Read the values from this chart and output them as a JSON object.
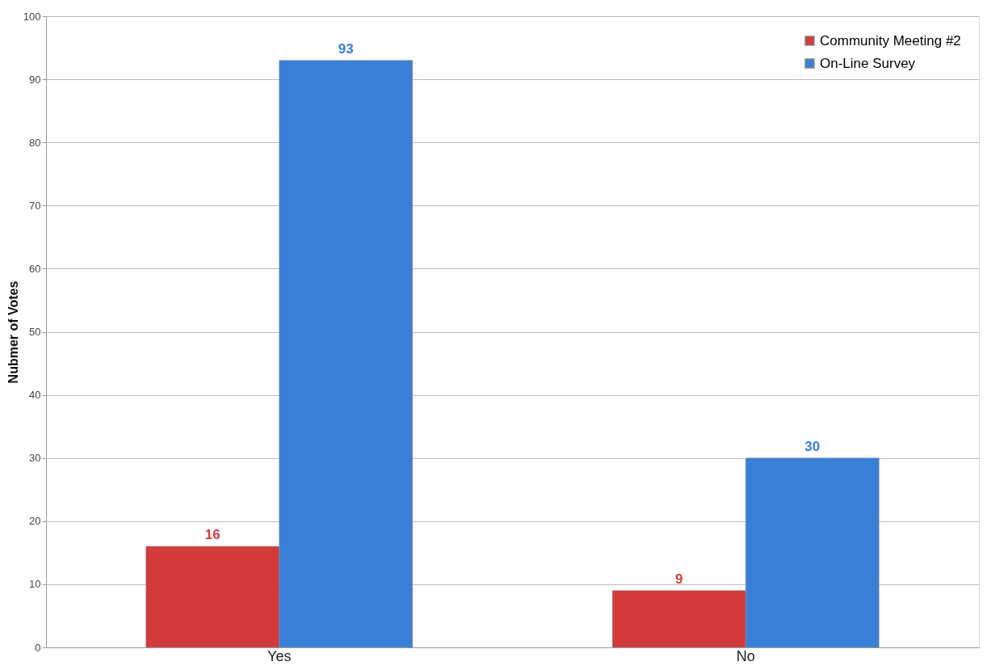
{
  "chart_data": {
    "type": "bar",
    "ylabel": "Nubmer of Votes",
    "categories": [
      "Yes",
      "No"
    ],
    "series": [
      {
        "name": "Community Meeting #2",
        "color": "#d23b3b",
        "values": [
          16,
          9
        ]
      },
      {
        "name": "On-Line Survey",
        "color": "#3a7fd6",
        "values": [
          93,
          30
        ]
      }
    ],
    "ylim": [
      0,
      100
    ],
    "yticks": [
      0,
      10,
      20,
      30,
      40,
      50,
      60,
      70,
      80,
      90,
      100
    ],
    "grid": "y",
    "legend": "top right",
    "data_labels": true
  }
}
